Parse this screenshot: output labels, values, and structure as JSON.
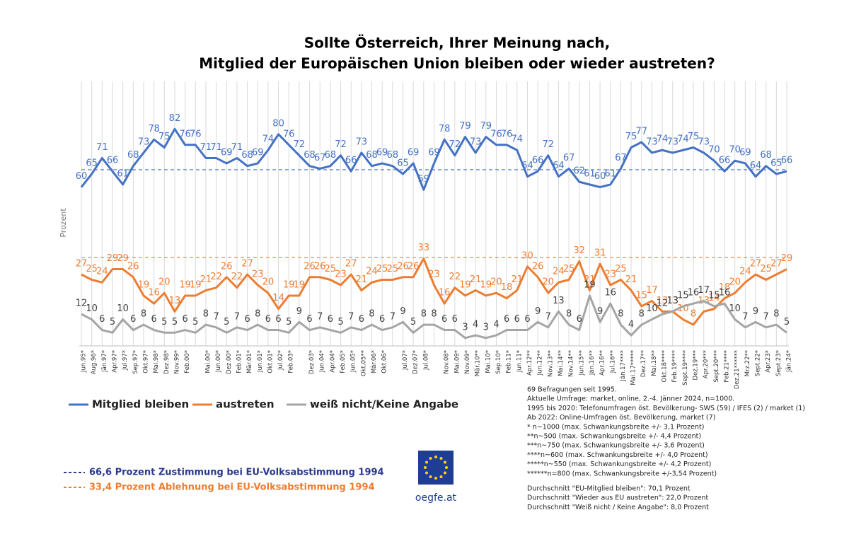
{
  "chart_data": {
    "type": "line",
    "title": [
      "Sollte Österreich, Ihrer Meinung nach,",
      "Mitglied der Europäischen Union bleiben oder wieder austreten?"
    ],
    "y_label": "Prozent",
    "categories": [
      "Jun.95*",
      "Aug.96*",
      "Jän.97*",
      "Apr.97*",
      "Jul.97*",
      "Sep.97*",
      "Okt.97*",
      "Mai.98*",
      "Dez.98*",
      "Nov.99*",
      "Feb.00*",
      null,
      "Mai.00*",
      "Jun.00*",
      "Dez.00*",
      "Feb.01*",
      "Mär.01*",
      "Jun.01*",
      "Okt.01*",
      "Jul.02*",
      "Feb.03*",
      null,
      "Dez.03*",
      "Jun.04*",
      "Apr.04*",
      "Feb.05*",
      "Jun.05*",
      "Okt.05**",
      "Mär.06*",
      "Okt.06*",
      null,
      "Jul.07*",
      "Dez.07*",
      "Jul.08*",
      null,
      "Nov.08*",
      "Mai.09*",
      "Nov.09*",
      "Mär.10**",
      "Mai.10*",
      "Sep.10*",
      "Feb.11*",
      "Jun.11*",
      "Apr.12**",
      "Jun.12**",
      "Nov.13**",
      "Mai.14**",
      "Nov.14**",
      "Jun.15**",
      "Jän.16**",
      "Apr.16**",
      "Jul.16**",
      "Jän.17****",
      "Mai.17*****",
      "Dez.17**",
      "Mai.18**",
      "Okt.18****",
      "Feb.19****",
      "Sept.19****",
      "Dez.19***",
      "Apr.20***",
      "Sept.20***",
      "Feb.21****",
      "Dez.21******",
      "Mrz.22**",
      "Sept.22*",
      "Apr.23*",
      "Sept.23*",
      "Jän.24*"
    ],
    "series": [
      {
        "name": "Mitglied bleiben",
        "color": "#4472c4",
        "values": [
          60,
          65,
          71,
          66,
          61,
          68,
          73,
          78,
          75,
          82,
          76,
          76,
          71,
          71,
          69,
          71,
          68,
          69,
          74,
          80,
          76,
          72,
          68,
          67,
          68,
          72,
          66,
          73,
          68,
          69,
          68,
          65,
          69,
          59,
          69,
          78,
          72,
          79,
          73,
          79,
          76,
          76,
          74,
          64,
          66,
          72,
          64,
          67,
          62,
          61,
          60,
          61,
          67,
          75,
          77,
          73,
          74,
          73,
          74,
          75,
          73,
          70,
          66,
          70,
          69,
          64,
          68,
          65,
          66
        ]
      },
      {
        "name": "austreten",
        "color": "#ed7d31",
        "values": [
          27,
          25,
          24,
          29,
          29,
          26,
          19,
          16,
          20,
          13,
          19,
          19,
          21,
          22,
          26,
          22,
          27,
          23,
          20,
          14,
          19,
          19,
          26,
          26,
          25,
          23,
          27,
          21,
          24,
          25,
          25,
          26,
          26,
          33,
          23,
          16,
          22,
          19,
          21,
          19,
          20,
          18,
          21,
          30,
          26,
          20,
          24,
          25,
          32,
          21,
          31,
          23,
          25,
          21,
          15,
          17,
          13,
          13,
          10,
          8,
          13,
          14,
          18,
          20,
          24,
          27,
          25,
          27,
          29
        ]
      },
      {
        "name": "weiß nicht/Keine Angabe",
        "color": "#a5a5a5",
        "values": [
          12,
          10,
          6,
          5,
          10,
          6,
          8,
          6,
          5,
          5,
          6,
          5,
          8,
          7,
          5,
          7,
          6,
          8,
          6,
          6,
          5,
          9,
          6,
          7,
          6,
          5,
          7,
          6,
          8,
          6,
          7,
          9,
          5,
          8,
          8,
          6,
          6,
          3,
          4,
          3,
          4,
          6,
          6,
          6,
          9,
          7,
          13,
          8,
          6,
          19,
          9,
          16,
          8,
          4,
          8,
          10,
          12,
          13,
          15,
          16,
          17,
          15,
          16,
          10,
          7,
          9,
          7,
          8,
          5
        ]
      }
    ],
    "ylim": [
      0,
      100
    ],
    "reference_lines": [
      {
        "value": 66.6,
        "label": "66,6 Prozent Zustimmung bei EU-Volksabstimmung 1994",
        "color": "#4472c4",
        "text_color": "#2b3990"
      },
      {
        "value": 33.4,
        "label": "33,4 Prozent Ablehnung bei EU-Volksabstimmung 1994",
        "color": "#ed7d31",
        "text_color": "#ed7d31"
      }
    ],
    "logo_text": "oegfe.at",
    "notes": [
      "69 Befragungen seit 1995.",
      "Aktuelle Umfrage: market, online, 2.-4. Jänner 2024, n=1000.",
      "1995 bis 2020: Telefonumfragen öst. Bevölkerung- SWS (59) / IFES (2) / market (1)",
      "Ab 2022: Online-Umfragen öst. Bevölkerung, market (7)",
      "* n~1000 (max. Schwankungsbreite +/- 3,1 Prozent)",
      "**n~500 (max. Schwankungsbreite +/- 4,4 Prozent)",
      "***n~750 (max. Schwankungsbreite +/- 3,6 Prozent)",
      "****n~600 (max. Schwankungsbreite +/- 4,0 Prozent)",
      "*****n~550 (max. Schwankungsbreite +/- 4,2 Prozent)",
      "******n=800 (max. Schwankungsbreite +/-3,54 Prozent)"
    ],
    "averages": [
      "Durchschnitt \"EU-Mitglied bleiben\": 70,1 Prozent",
      "Durchschnitt \"Wieder aus EU austreten\":  22,0 Prozent",
      "Durchschnitt \"Weiß nicht / Keine Angabe\": 8,0 Prozent"
    ]
  }
}
